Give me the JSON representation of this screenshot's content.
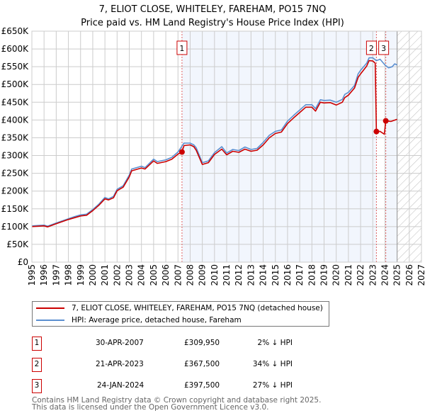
{
  "chart_data": {
    "type": "line",
    "title": "7, ELIOT CLOSE, WHITELEY, FAREHAM, PO15 7NQ",
    "subtitle": "Price paid vs. HM Land Registry's House Price Index (HPI)",
    "xlim": [
      1995,
      2027
    ],
    "ylim": [
      0,
      650000
    ],
    "x_ticks": [
      "1995",
      "1996",
      "1997",
      "1998",
      "1999",
      "2000",
      "2001",
      "2002",
      "2003",
      "2004",
      "2005",
      "2006",
      "2007",
      "2008",
      "2009",
      "2010",
      "2011",
      "2012",
      "2013",
      "2014",
      "2015",
      "2016",
      "2017",
      "2018",
      "2019",
      "2020",
      "2021",
      "2022",
      "2023",
      "2024",
      "2025",
      "2026",
      "2027"
    ],
    "y_ticks": [
      {
        "value": 0,
        "label": "£0"
      },
      {
        "value": 50000,
        "label": "£50K"
      },
      {
        "value": 100000,
        "label": "£100K"
      },
      {
        "value": 150000,
        "label": "£150K"
      },
      {
        "value": 200000,
        "label": "£200K"
      },
      {
        "value": 250000,
        "label": "£250K"
      },
      {
        "value": 300000,
        "label": "£300K"
      },
      {
        "value": 350000,
        "label": "£350K"
      },
      {
        "value": 400000,
        "label": "£400K"
      },
      {
        "value": 450000,
        "label": "£450K"
      },
      {
        "value": 500000,
        "label": "£500K"
      },
      {
        "value": 550000,
        "label": "£550K"
      },
      {
        "value": 600000,
        "label": "£600K"
      },
      {
        "value": 650000,
        "label": "£650K"
      }
    ],
    "grid": true,
    "forecast_from": 2025,
    "series": [
      {
        "name": "HPI: Average price, detached house, Fareham",
        "color": "#5b8fd0",
        "x": [
          1995,
          1996,
          1996.3,
          1997,
          1998,
          1998.5,
          1999,
          1999.5,
          2000,
          2000.5,
          2001,
          2001.3,
          2001.7,
          2002,
          2002.5,
          2003,
          2003.2,
          2004,
          2004.3,
          2005,
          2005.3,
          2006,
          2006.5,
          2007,
          2007.5,
          2008,
          2008.3,
          2008.5,
          2009,
          2009.5,
          2010,
          2010.6,
          2011,
          2011.5,
          2012,
          2012.5,
          2013,
          2013.5,
          2014,
          2014.5,
          2015,
          2015.5,
          2016,
          2016.5,
          2017,
          2017.5,
          2018,
          2018.3,
          2018.7,
          2019,
          2019.5,
          2020,
          2020.5,
          2020.7,
          2021,
          2021.5,
          2021.8,
          2022,
          2022.5,
          2022.7,
          2023,
          2023.3,
          2023.6,
          2024,
          2024.3,
          2024.6,
          2024.8,
          2025
        ],
        "y": [
          102000,
          104000,
          101000,
          110000,
          122000,
          128000,
          133000,
          135000,
          148000,
          163000,
          182000,
          178000,
          185000,
          205000,
          215000,
          245000,
          262000,
          270000,
          266000,
          290000,
          283000,
          288000,
          295000,
          310000,
          335000,
          335000,
          330000,
          322000,
          280000,
          285000,
          308000,
          325000,
          307000,
          317000,
          314000,
          324000,
          317000,
          320000,
          337000,
          357000,
          368000,
          372000,
          397000,
          413000,
          428000,
          443000,
          443000,
          432000,
          457000,
          455000,
          456000,
          450000,
          458000,
          472000,
          478000,
          497000,
          530000,
          540000,
          560000,
          575000,
          575000,
          567000,
          571000,
          555000,
          547000,
          550000,
          558000,
          555000
        ]
      },
      {
        "name": "7, ELIOT CLOSE, WHITELEY, FAREHAM, PO15 7NQ (detached house)",
        "color": "#cc0000",
        "x": [
          1995,
          1996,
          1996.3,
          1997,
          1998,
          1998.5,
          1999,
          1999.5,
          2000,
          2000.5,
          2001,
          2001.3,
          2001.7,
          2002,
          2002.5,
          2003,
          2003.2,
          2004,
          2004.3,
          2005,
          2005.3,
          2006,
          2006.5,
          2007,
          2007.33,
          2007.5,
          2008,
          2008.3,
          2008.5,
          2009,
          2009.5,
          2010,
          2010.6,
          2011,
          2011.5,
          2012,
          2012.5,
          2013,
          2013.5,
          2014,
          2014.5,
          2015,
          2015.5,
          2016,
          2016.5,
          2017,
          2017.5,
          2018,
          2018.3,
          2018.7,
          2019,
          2019.5,
          2020,
          2020.5,
          2020.7,
          2021,
          2021.5,
          2021.8,
          2022,
          2022.5,
          2022.7,
          2023,
          2023.2,
          2023.3,
          2023.6,
          2023.95,
          2024.07,
          2024.5,
          2025
        ],
        "y": [
          100000,
          102000,
          99000,
          108000,
          120000,
          125000,
          130000,
          132000,
          145000,
          160000,
          178000,
          175000,
          181000,
          201000,
          211000,
          240000,
          257000,
          265000,
          262000,
          285000,
          278000,
          283000,
          290000,
          304000,
          309950,
          328000,
          330000,
          325000,
          315000,
          275000,
          280000,
          303000,
          318000,
          302000,
          312000,
          309000,
          318000,
          312000,
          315000,
          330000,
          350000,
          362000,
          366000,
          390000,
          406000,
          421000,
          436000,
          436000,
          425000,
          450000,
          448000,
          449000,
          442000,
          450000,
          463000,
          470000,
          490000,
          520000,
          530000,
          552000,
          567000,
          566000,
          560000,
          367500,
          368000,
          360000,
          397500,
          396000,
          402000
        ]
      }
    ],
    "sales": [
      {
        "id": "1",
        "x": 2007.33,
        "y": 309950
      },
      {
        "id": "2",
        "x": 2023.3,
        "y": 367500
      },
      {
        "id": "3",
        "x": 2024.07,
        "y": 397500
      }
    ]
  },
  "legend": [
    {
      "label": "7, ELIOT CLOSE, WHITELEY, FAREHAM, PO15 7NQ (detached house)",
      "color": "#cc0000"
    },
    {
      "label": "HPI: Average price, detached house, Fareham",
      "color": "#5b8fd0"
    }
  ],
  "transactions": [
    {
      "id": "1",
      "date": "30-APR-2007",
      "price": "£309,950",
      "hpi": "2% ↓ HPI"
    },
    {
      "id": "2",
      "date": "21-APR-2023",
      "price": "£367,500",
      "hpi": "34% ↓ HPI"
    },
    {
      "id": "3",
      "date": "24-JAN-2024",
      "price": "£397,500",
      "hpi": "27% ↓ HPI"
    }
  ],
  "footer": {
    "line1": "Contains HM Land Registry data © Crown copyright and database right 2025.",
    "line2": "This data is licensed under the Open Government Licence v3.0."
  }
}
